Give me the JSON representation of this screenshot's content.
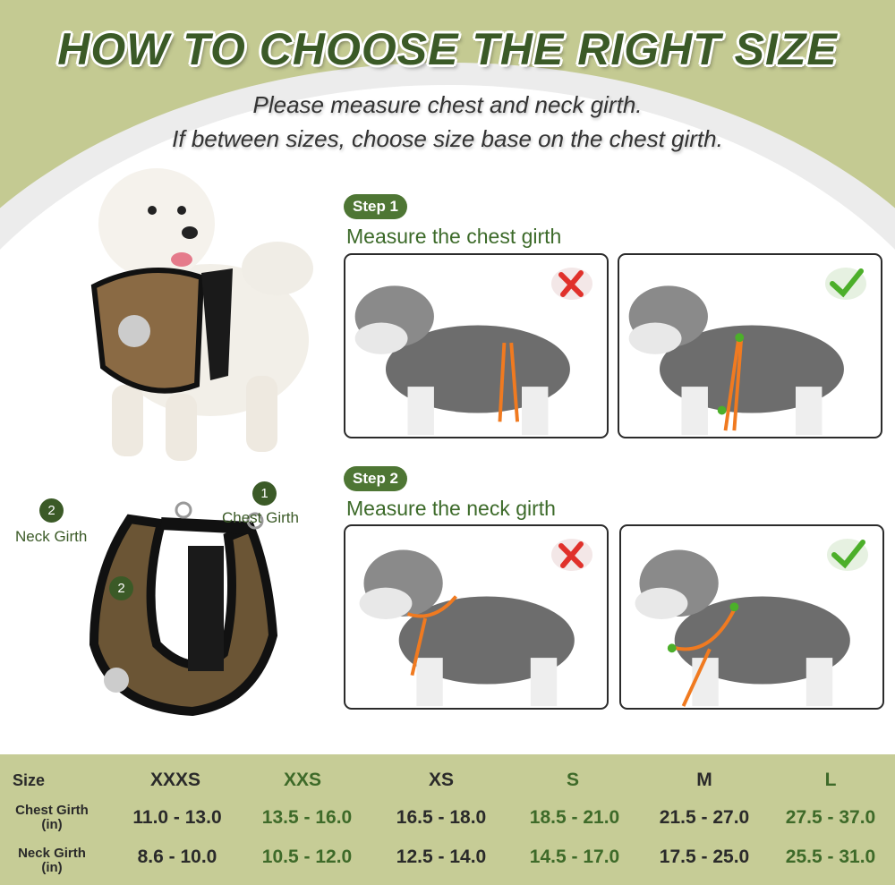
{
  "title": "HOW TO CHOOSE THE RIGHT SIZE",
  "subtitle": [
    "Please measure chest and neck girth.",
    "If between sizes, choose size base on the chest girth."
  ],
  "steps": [
    {
      "badge": "Step 1",
      "text": "Measure the chest girth",
      "wrong_icon": "red-x-icon",
      "right_icon": "green-check-icon"
    },
    {
      "badge": "Step 2",
      "text": "Measure the neck girth",
      "wrong_icon": "red-x-icon",
      "right_icon": "green-check-icon"
    }
  ],
  "harness_labels": {
    "neck_num": "2",
    "neck": "Neck Girth",
    "chest_num": "1",
    "chest": "Chest Girth",
    "inner_num": "2"
  },
  "colors": {
    "brand_green": "#3b5a27",
    "band": "#c6cc96",
    "wrong": "#e0312b",
    "right": "#4caf2a",
    "strap": "#f07a20"
  },
  "table": {
    "headers": [
      "Size",
      "XXXS",
      "XXS",
      "XS",
      "S",
      "M",
      "L"
    ],
    "rows": [
      {
        "label": "Chest Girth",
        "unit": "(in)",
        "values": [
          "11.0 - 13.0",
          "13.5 - 16.0",
          "16.5 - 18.0",
          "18.5 - 21.0",
          "21.5 - 27.0",
          "27.5 - 37.0"
        ]
      },
      {
        "label": "Neck Girth",
        "unit": "(in)",
        "values": [
          "8.6 - 10.0",
          "10.5 - 12.0",
          "12.5 - 14.0",
          "14.5 - 17.0",
          "17.5 - 25.0",
          "25.5 - 31.0"
        ]
      }
    ]
  }
}
